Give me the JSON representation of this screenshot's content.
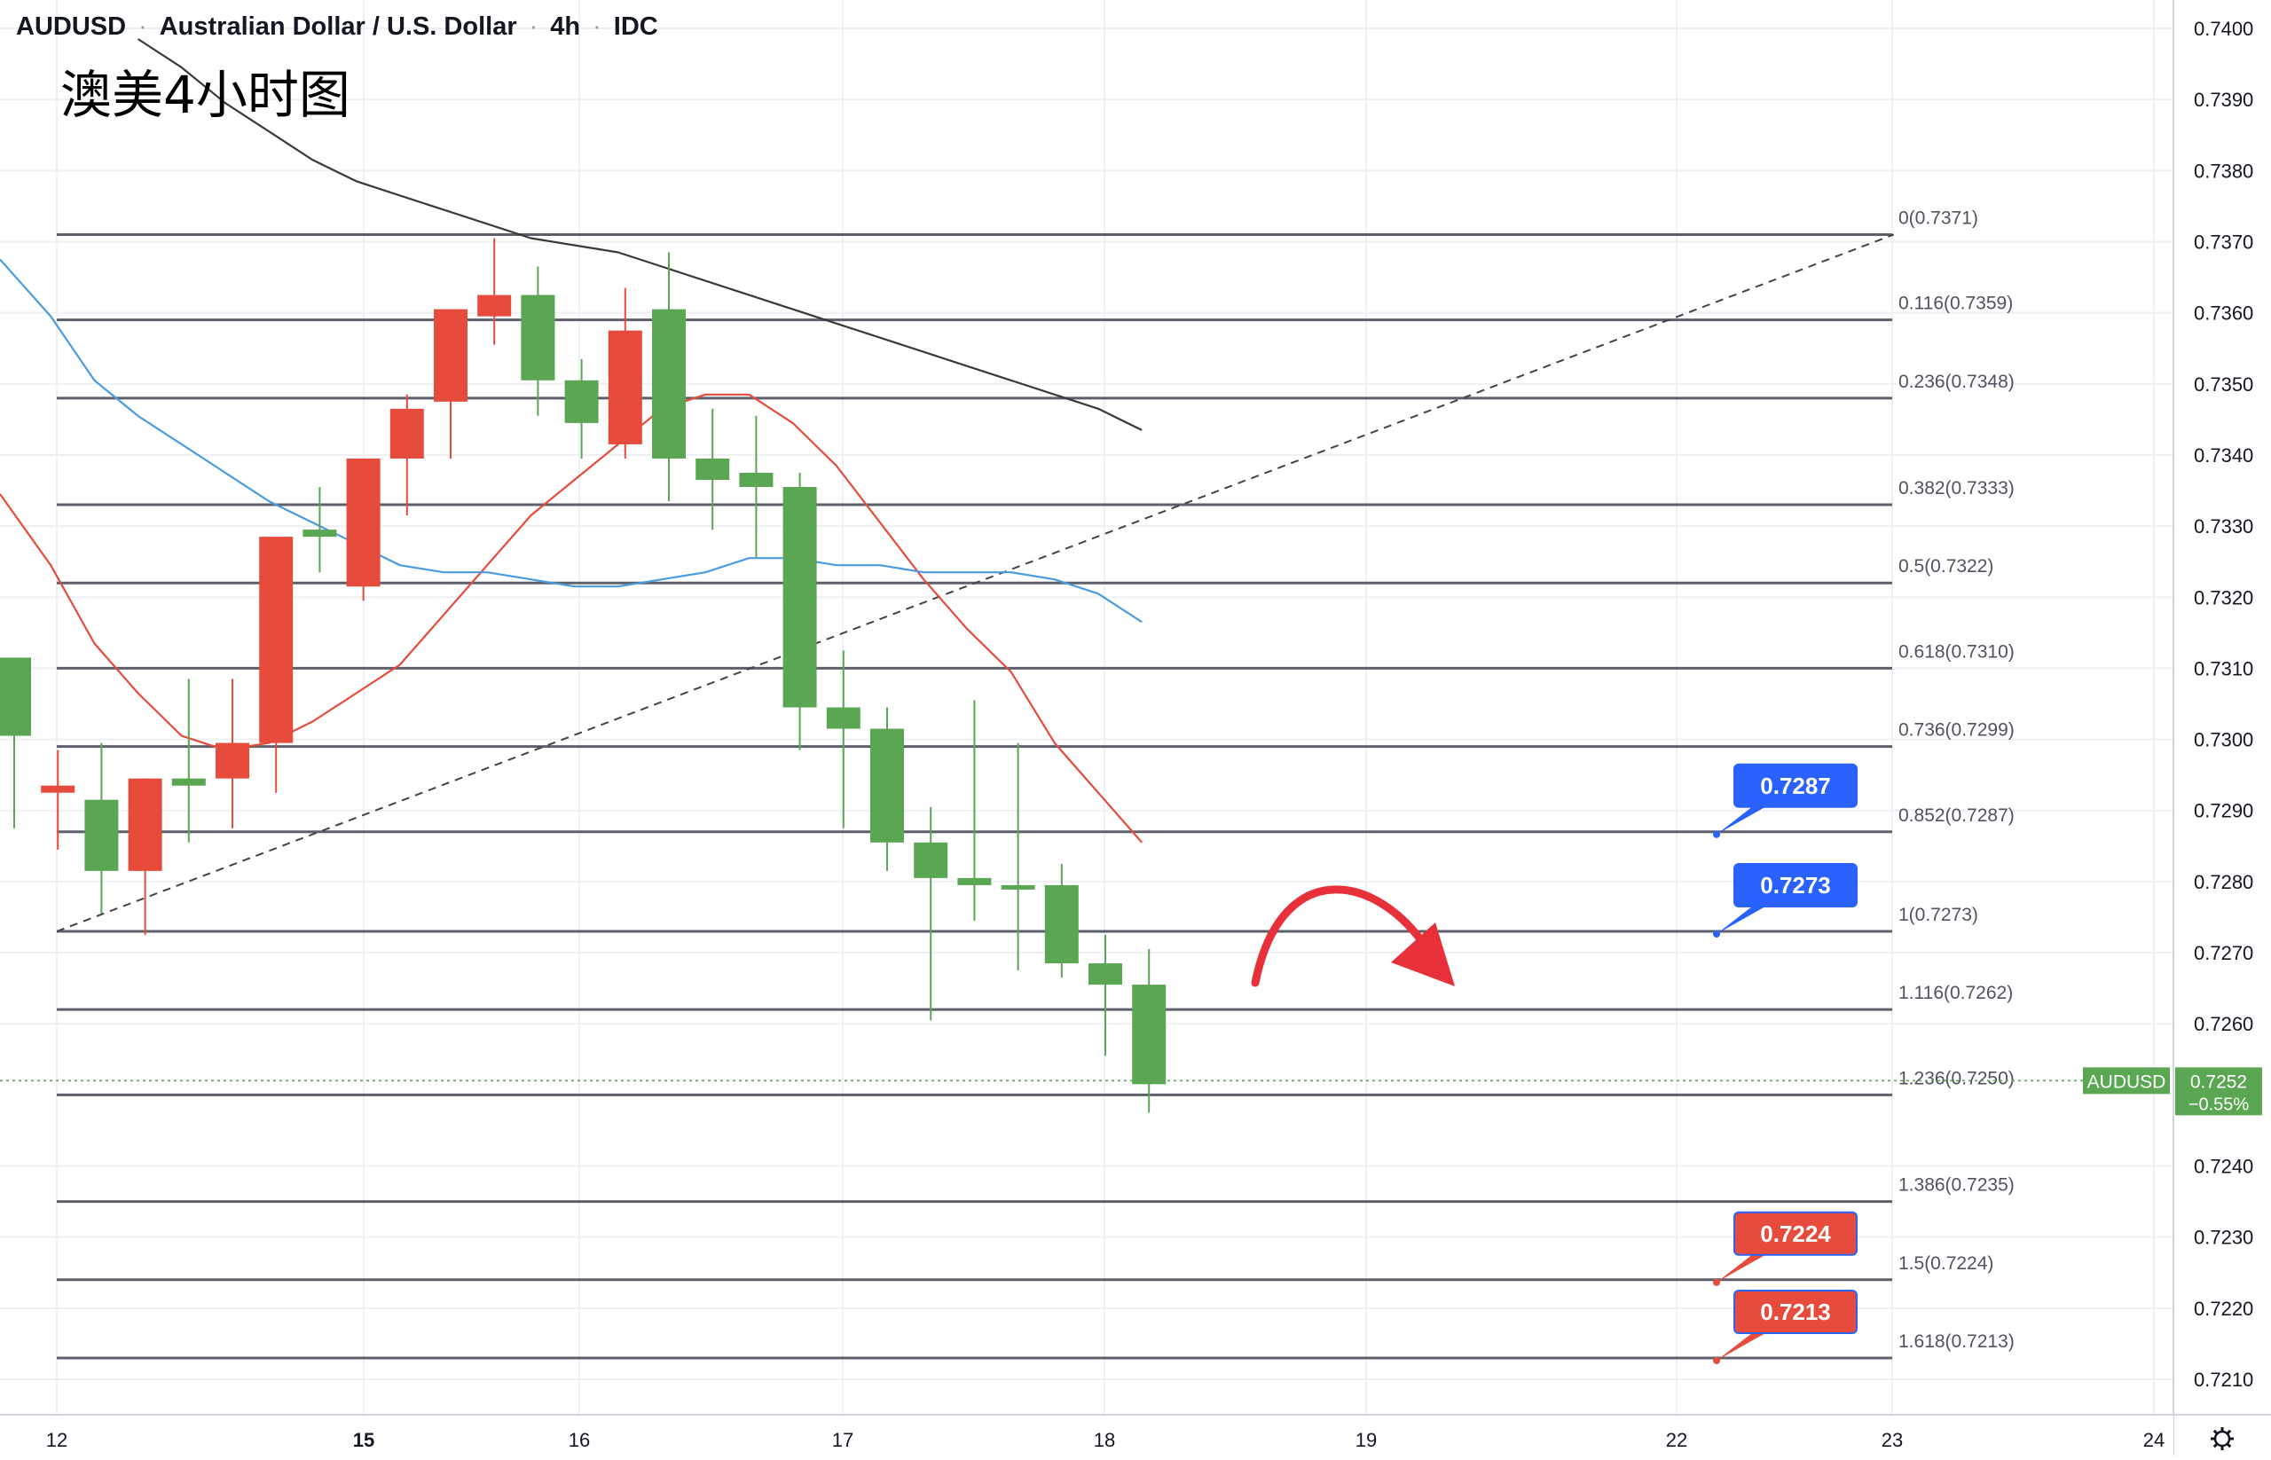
{
  "header": {
    "symbol": "AUDUSD",
    "name": "Australian Dollar / U.S. Dollar",
    "interval": "4h",
    "source": "IDC",
    "separator": "·"
  },
  "overlay_title": "澳美4小时图",
  "colors": {
    "up": "#5aa653",
    "down": "#e64b3c",
    "ma_fast": "#e64b3c",
    "ma_mid": "#4a9be0",
    "ma_slow": "#3a3a3a",
    "fib_line": "#5d606b",
    "label_blue": "#2962ff",
    "label_red": "#e64b3c",
    "price_tag": "#5aa653",
    "arrow": "#e8303a"
  },
  "icons": {
    "settings": "gear-icon"
  },
  "chart_data": {
    "type": "candlestick",
    "title": "AUDUSD · Australian Dollar / U.S. Dollar · 4h · IDC",
    "ylim": [
      0.7205,
      0.7402
    ],
    "y_ticks": [
      "0.7400",
      "0.7390",
      "0.7380",
      "0.7370",
      "0.7360",
      "0.7350",
      "0.7340",
      "0.7330",
      "0.7320",
      "0.7310",
      "0.7300",
      "0.7290",
      "0.7280",
      "0.7270",
      "0.7260",
      "0.7240",
      "0.7230",
      "0.7220",
      "0.7210"
    ],
    "x_ticks": [
      "12",
      "15",
      "16",
      "17",
      "18",
      "19",
      "22",
      "23",
      "24"
    ],
    "x_ticks_bold": [
      "15"
    ],
    "candles": [
      {
        "o": 0.73005,
        "h": 0.73115,
        "l": 0.72875,
        "c": 0.73115
      },
      {
        "o": 0.72935,
        "h": 0.72985,
        "l": 0.72845,
        "c": 0.72925
      },
      {
        "o": 0.72815,
        "h": 0.72995,
        "l": 0.72755,
        "c": 0.72915
      },
      {
        "o": 0.72945,
        "h": 0.72945,
        "l": 0.72725,
        "c": 0.72815
      },
      {
        "o": 0.72935,
        "h": 0.73085,
        "l": 0.72855,
        "c": 0.72945
      },
      {
        "o": 0.72995,
        "h": 0.73085,
        "l": 0.72875,
        "c": 0.72945
      },
      {
        "o": 0.73285,
        "h": 0.73285,
        "l": 0.72925,
        "c": 0.72995
      },
      {
        "o": 0.73285,
        "h": 0.73355,
        "l": 0.73235,
        "c": 0.73295
      },
      {
        "o": 0.73395,
        "h": 0.73395,
        "l": 0.73195,
        "c": 0.73215
      },
      {
        "o": 0.73465,
        "h": 0.73485,
        "l": 0.73315,
        "c": 0.73395
      },
      {
        "o": 0.73605,
        "h": 0.73605,
        "l": 0.73395,
        "c": 0.73475
      },
      {
        "o": 0.73625,
        "h": 0.73705,
        "l": 0.73555,
        "c": 0.73595
      },
      {
        "o": 0.73505,
        "h": 0.73665,
        "l": 0.73455,
        "c": 0.73625
      },
      {
        "o": 0.73445,
        "h": 0.73535,
        "l": 0.73395,
        "c": 0.73505
      },
      {
        "o": 0.73575,
        "h": 0.73635,
        "l": 0.73395,
        "c": 0.73415
      },
      {
        "o": 0.73395,
        "h": 0.73685,
        "l": 0.73335,
        "c": 0.73605
      },
      {
        "o": 0.73365,
        "h": 0.73465,
        "l": 0.73295,
        "c": 0.73395
      },
      {
        "o": 0.73355,
        "h": 0.73455,
        "l": 0.73255,
        "c": 0.73375
      },
      {
        "o": 0.73045,
        "h": 0.73375,
        "l": 0.72985,
        "c": 0.73355
      },
      {
        "o": 0.73015,
        "h": 0.73125,
        "l": 0.72875,
        "c": 0.73045
      },
      {
        "o": 0.72855,
        "h": 0.73045,
        "l": 0.72815,
        "c": 0.73015
      },
      {
        "o": 0.72805,
        "h": 0.72905,
        "l": 0.72605,
        "c": 0.72855
      },
      {
        "o": 0.72795,
        "h": 0.73055,
        "l": 0.72745,
        "c": 0.72805
      },
      {
        "o": 0.72795,
        "h": 0.72995,
        "l": 0.72675,
        "c": 0.72795
      },
      {
        "o": 0.72685,
        "h": 0.72825,
        "l": 0.72665,
        "c": 0.72795
      },
      {
        "o": 0.72655,
        "h": 0.72725,
        "l": 0.72555,
        "c": 0.72685
      },
      {
        "o": 0.72515,
        "h": 0.72705,
        "l": 0.72475,
        "c": 0.72655
      }
    ],
    "ma_fast": [
      0.73345,
      0.73245,
      0.73135,
      0.73065,
      0.73005,
      0.72985,
      0.72995,
      0.73025,
      0.73065,
      0.73105,
      0.73175,
      0.73245,
      0.73315,
      0.73365,
      0.73415,
      0.73465,
      0.73485,
      0.73485,
      0.73445,
      0.73385,
      0.73305,
      0.73225,
      0.73155,
      0.73095,
      0.72995,
      0.72925,
      0.72855
    ],
    "ma_mid": [
      0.73675,
      0.73595,
      0.73505,
      0.73455,
      0.73415,
      0.73375,
      0.73335,
      0.73305,
      0.73275,
      0.73245,
      0.73235,
      0.73235,
      0.73225,
      0.73215,
      0.73215,
      0.73225,
      0.73235,
      0.73255,
      0.73255,
      0.73245,
      0.73245,
      0.73235,
      0.73235,
      0.73235,
      0.73225,
      0.73205,
      0.73165
    ],
    "ma_slow": [
      null,
      null,
      null,
      0.73985,
      0.73945,
      0.73895,
      0.73855,
      0.73815,
      0.73785,
      0.73765,
      0.73745,
      0.73725,
      0.73705,
      0.73695,
      0.73685,
      0.73665,
      0.73645,
      0.73625,
      0.73605,
      0.73585,
      0.73565,
      0.73545,
      0.73525,
      0.73505,
      0.73485,
      0.73465,
      0.73435
    ],
    "trendline": {
      "from": {
        "bar": 0,
        "price": 0.7273
      },
      "to": {
        "bar": 42.0,
        "price": 0.7371
      }
    },
    "fib_levels": [
      {
        "ratio": "0",
        "price": 0.7371,
        "label": "0(0.7371)"
      },
      {
        "ratio": "0.116",
        "price": 0.7359,
        "label": "0.116(0.7359)"
      },
      {
        "ratio": "0.236",
        "price": 0.7348,
        "label": "0.236(0.7348)"
      },
      {
        "ratio": "0.382",
        "price": 0.7333,
        "label": "0.382(0.7333)"
      },
      {
        "ratio": "0.5",
        "price": 0.7322,
        "label": "0.5(0.7322)"
      },
      {
        "ratio": "0.618",
        "price": 0.731,
        "label": "0.618(0.7310)"
      },
      {
        "ratio": "0.736",
        "price": 0.7299,
        "label": "0.736(0.7299)"
      },
      {
        "ratio": "0.852",
        "price": 0.7287,
        "label": "0.852(0.7287)"
      },
      {
        "ratio": "1",
        "price": 0.7273,
        "label": "1(0.7273)"
      },
      {
        "ratio": "1.116",
        "price": 0.7262,
        "label": "1.116(0.7262)"
      },
      {
        "ratio": "1.236",
        "price": 0.725,
        "label": "1.236(0.7250)"
      },
      {
        "ratio": "1.386",
        "price": 0.7235,
        "label": "1.386(0.7235)"
      },
      {
        "ratio": "1.5",
        "price": 0.7224,
        "label": "1.5(0.7224)"
      },
      {
        "ratio": "1.618",
        "price": 0.7213,
        "label": "1.618(0.7213)"
      }
    ],
    "callouts": [
      {
        "text": "0.7287",
        "price": 0.7287,
        "color": "blue"
      },
      {
        "text": "0.7273",
        "price": 0.7273,
        "color": "blue"
      },
      {
        "text": "0.7224",
        "price": 0.7224,
        "color": "red"
      },
      {
        "text": "0.7213",
        "price": 0.7213,
        "color": "red"
      }
    ],
    "last_price": {
      "symbol": "AUDUSD",
      "price": 0.7252,
      "price_text": "0.7252",
      "change": "−0.55%"
    }
  }
}
